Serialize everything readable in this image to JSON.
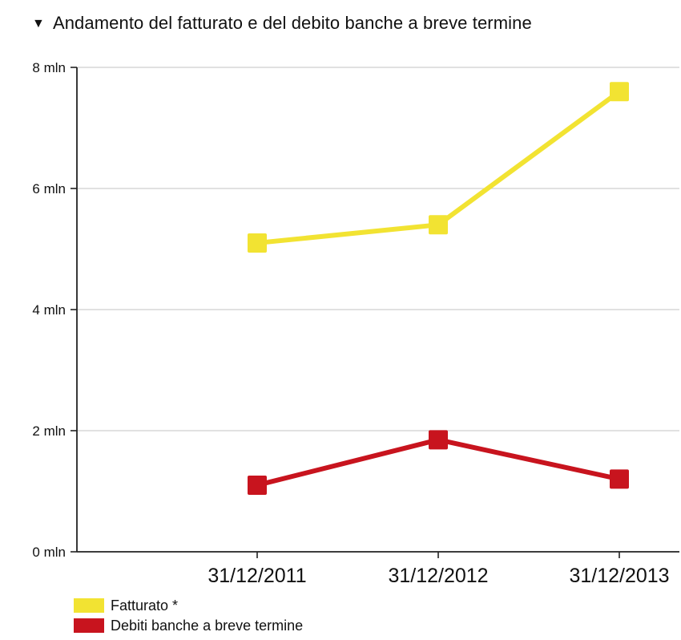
{
  "header": {
    "toggle_glyph": "▼",
    "title": "Andamento del fatturato e del debito banche a breve termine"
  },
  "chart_data": {
    "type": "line",
    "title": "Andamento del fatturato e del debito banche a breve termine",
    "xlabel": "",
    "ylabel": "",
    "categories": [
      "31/12/2011",
      "31/12/2012",
      "31/12/2013"
    ],
    "ylim": [
      0,
      8
    ],
    "yticks": [
      0,
      2,
      4,
      6,
      8
    ],
    "ytick_labels": [
      "0 mln",
      "2 mln",
      "4 mln",
      "6 mln",
      "8 mln"
    ],
    "grid": true,
    "legend_position": "bottom-left",
    "series": [
      {
        "name": "Fatturato *",
        "color": "#f2e332",
        "values": [
          5.1,
          5.4,
          7.6
        ]
      },
      {
        "name": "Debiti banche a breve termine",
        "color": "#c8141e",
        "values": [
          1.1,
          1.85,
          1.2
        ]
      }
    ]
  }
}
